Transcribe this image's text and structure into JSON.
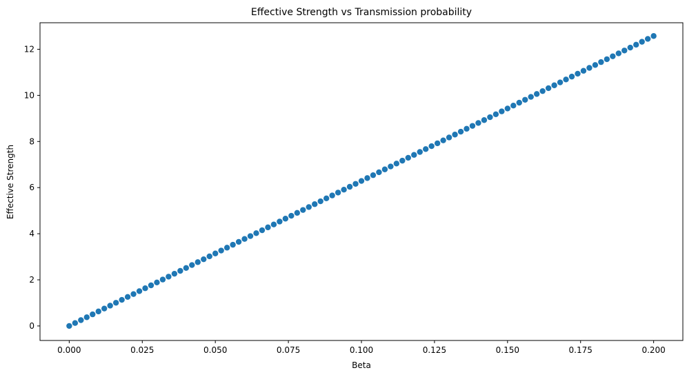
{
  "chart_data": {
    "type": "scatter",
    "title": "Effective Strength vs Transmission probability",
    "xlabel": "Beta",
    "ylabel": "Effective Strength",
    "xlim": [
      -0.01,
      0.21
    ],
    "ylim": [
      -0.63,
      13.15
    ],
    "xticks": [
      "0.000",
      "0.025",
      "0.050",
      "0.075",
      "0.100",
      "0.125",
      "0.150",
      "0.175",
      "0.200"
    ],
    "yticks": [
      "0",
      "2",
      "4",
      "6",
      "8",
      "10",
      "12"
    ],
    "grid": false,
    "series": [
      {
        "color": "#1f77b4",
        "x": [
          0.0,
          0.002,
          0.004,
          0.006,
          0.008,
          0.01,
          0.012,
          0.014,
          0.016,
          0.018,
          0.02,
          0.022,
          0.024,
          0.026,
          0.028,
          0.03,
          0.032,
          0.034,
          0.036,
          0.038,
          0.04,
          0.042,
          0.044,
          0.046,
          0.048,
          0.05,
          0.052,
          0.054,
          0.056,
          0.058,
          0.06,
          0.062,
          0.064,
          0.066,
          0.068,
          0.07,
          0.072,
          0.074,
          0.076,
          0.078,
          0.08,
          0.082,
          0.084,
          0.086,
          0.088,
          0.09,
          0.092,
          0.094,
          0.096,
          0.098,
          0.1,
          0.102,
          0.104,
          0.106,
          0.108,
          0.11,
          0.112,
          0.114,
          0.116,
          0.118,
          0.12,
          0.122,
          0.124,
          0.126,
          0.128,
          0.13,
          0.132,
          0.134,
          0.136,
          0.138,
          0.14,
          0.142,
          0.144,
          0.146,
          0.148,
          0.15,
          0.152,
          0.154,
          0.156,
          0.158,
          0.16,
          0.162,
          0.164,
          0.166,
          0.168,
          0.17,
          0.172,
          0.174,
          0.176,
          0.178,
          0.18,
          0.182,
          0.184,
          0.186,
          0.188,
          0.19,
          0.192,
          0.194,
          0.196,
          0.198,
          0.2
        ],
        "y": [
          0.0,
          0.126,
          0.252,
          0.377,
          0.503,
          0.629,
          0.755,
          0.88,
          1.006,
          1.132,
          1.258,
          1.383,
          1.509,
          1.635,
          1.761,
          1.886,
          2.012,
          2.138,
          2.264,
          2.389,
          2.515,
          2.641,
          2.767,
          2.892,
          3.018,
          3.144,
          3.27,
          3.395,
          3.521,
          3.647,
          3.773,
          3.898,
          4.024,
          4.15,
          4.276,
          4.401,
          4.527,
          4.653,
          4.779,
          4.904,
          5.03,
          5.156,
          5.282,
          5.407,
          5.533,
          5.659,
          5.785,
          5.91,
          6.036,
          6.162,
          6.288,
          6.413,
          6.539,
          6.665,
          6.791,
          6.916,
          7.042,
          7.168,
          7.294,
          7.419,
          7.545,
          7.671,
          7.797,
          7.922,
          8.048,
          8.174,
          8.3,
          8.425,
          8.551,
          8.677,
          8.803,
          8.928,
          9.054,
          9.18,
          9.306,
          9.431,
          9.557,
          9.683,
          9.809,
          9.934,
          10.06,
          10.186,
          10.312,
          10.437,
          10.563,
          10.689,
          10.815,
          10.94,
          11.066,
          11.192,
          11.318,
          11.443,
          11.569,
          11.695,
          11.821,
          11.946,
          12.072,
          12.198,
          12.324,
          12.449,
          12.575
        ]
      }
    ]
  }
}
